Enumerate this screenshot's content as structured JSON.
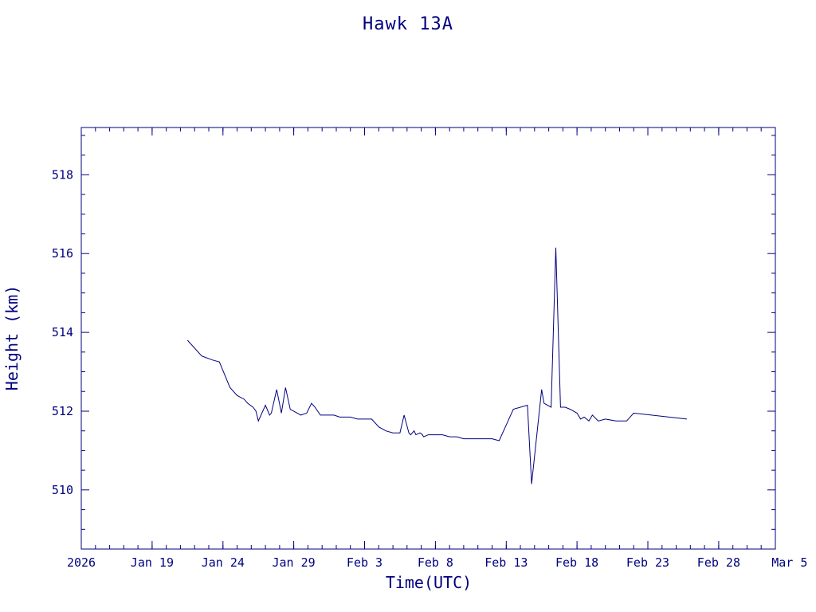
{
  "colors": {
    "ink": "#000080",
    "background": "#ffffff"
  },
  "chart_data": {
    "type": "line",
    "title": "Hawk 13A",
    "xlabel": "Time(UTC)",
    "ylabel": "Height (km)",
    "x_axis": {
      "type": "date",
      "range": [
        "2026-01-14",
        "2026-03-04"
      ],
      "tick_labels": [
        {
          "date": "2026-01-14",
          "label": "2026"
        },
        {
          "date": "2026-01-19",
          "label": "Jan 19"
        },
        {
          "date": "2026-01-24",
          "label": "Jan 24"
        },
        {
          "date": "2026-01-29",
          "label": "Jan 29"
        },
        {
          "date": "2026-02-03",
          "label": "Feb  3"
        },
        {
          "date": "2026-02-08",
          "label": "Feb  8"
        },
        {
          "date": "2026-02-13",
          "label": "Feb 13"
        },
        {
          "date": "2026-02-18",
          "label": "Feb 18"
        },
        {
          "date": "2026-02-23",
          "label": "Feb 23"
        },
        {
          "date": "2026-02-28",
          "label": "Feb 28"
        },
        {
          "date": "2026-03-05",
          "label": "Mar  5"
        }
      ]
    },
    "y_axis": {
      "range": [
        508.5,
        519.2
      ],
      "ticks": [
        510,
        512,
        514,
        516,
        518
      ],
      "minor_step": 0.5
    },
    "grid": false,
    "legend": "none",
    "series": [
      {
        "x": [
          "2026-01-21T12:00",
          "2026-01-22T12:00",
          "2026-01-23T06:00",
          "2026-01-23T18:00",
          "2026-01-24T12:00",
          "2026-01-25T00:00",
          "2026-01-25T12:00",
          "2026-01-25T18:00",
          "2026-01-26T03:00",
          "2026-01-26T08:00",
          "2026-01-26T12:00",
          "2026-01-27T00:00",
          "2026-01-27T07:00",
          "2026-01-27T10:00",
          "2026-01-27T19:00",
          "2026-01-28T03:00",
          "2026-01-28T10:00",
          "2026-01-28T18:00",
          "2026-01-29T12:00",
          "2026-01-29T22:00",
          "2026-01-30T06:00",
          "2026-01-30T12:00",
          "2026-01-30T21:00",
          "2026-01-31T06:00",
          "2026-01-31T20:00",
          "2026-02-01T06:00",
          "2026-02-01T12:00",
          "2026-02-02T00:00",
          "2026-02-02T12:00",
          "2026-02-03T00:00",
          "2026-02-03T12:00",
          "2026-02-04T00:00",
          "2026-02-04T12:00",
          "2026-02-05T00:00",
          "2026-02-05T12:00",
          "2026-02-05T19:00",
          "2026-02-06T03:00",
          "2026-02-06T06:00",
          "2026-02-06T12:00",
          "2026-02-06T15:00",
          "2026-02-06T22:00",
          "2026-02-07T02:00",
          "2026-02-07T04:00",
          "2026-02-07T12:00",
          "2026-02-07T19:00",
          "2026-02-08T00:00",
          "2026-02-08T12:00",
          "2026-02-09T00:00",
          "2026-02-09T12:00",
          "2026-02-10T00:00",
          "2026-02-10T12:00",
          "2026-02-11T00:00",
          "2026-02-11T12:00",
          "2026-02-12T00:00",
          "2026-02-12T12:00",
          "2026-02-13T12:00",
          "2026-02-14T12:00",
          "2026-02-14T19:00",
          "2026-02-15T12:00",
          "2026-02-15T16:00",
          "2026-02-16T04:00",
          "2026-02-16T12:00",
          "2026-02-16T20:00",
          "2026-02-17T04:00",
          "2026-02-17T12:00",
          "2026-02-18T00:00",
          "2026-02-18T06:00",
          "2026-02-18T12:00",
          "2026-02-18T20:00",
          "2026-02-19T02:00",
          "2026-02-19T12:00",
          "2026-02-20T00:00",
          "2026-02-20T18:00",
          "2026-02-21T12:00",
          "2026-02-22T00:00",
          "2026-02-25T18:00"
        ],
        "y": [
          513.8,
          513.4,
          513.3,
          513.25,
          512.6,
          512.4,
          512.3,
          512.2,
          512.1,
          512.0,
          511.75,
          512.15,
          511.9,
          511.95,
          512.55,
          511.95,
          512.6,
          512.05,
          511.9,
          511.95,
          512.2,
          512.1,
          511.9,
          511.9,
          511.9,
          511.85,
          511.85,
          511.85,
          511.8,
          511.8,
          511.8,
          511.6,
          511.5,
          511.45,
          511.45,
          511.9,
          511.45,
          511.4,
          511.5,
          511.4,
          511.45,
          511.4,
          511.35,
          511.4,
          511.4,
          511.4,
          511.4,
          511.35,
          511.35,
          511.3,
          511.3,
          511.3,
          511.3,
          511.3,
          511.25,
          512.05,
          512.15,
          510.15,
          512.55,
          512.2,
          512.1,
          516.15,
          512.1,
          512.1,
          512.05,
          511.95,
          511.8,
          511.85,
          511.75,
          511.9,
          511.75,
          511.8,
          511.75,
          511.75,
          511.95,
          511.8
        ]
      }
    ]
  }
}
